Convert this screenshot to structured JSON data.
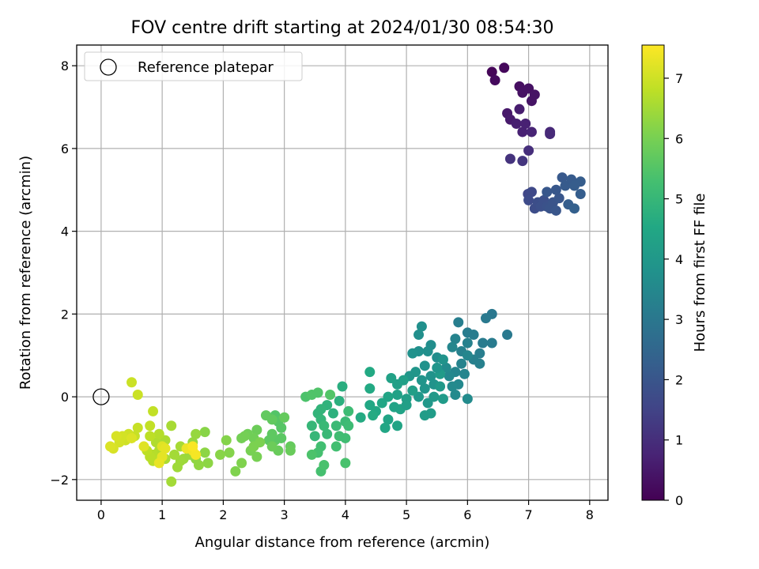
{
  "chart_data": {
    "type": "scatter",
    "title": "FOV centre drift starting at 2024/01/30 08:54:30",
    "xlabel": "Angular distance from reference (arcmin)",
    "ylabel": "Rotation from reference (arcmin)",
    "xlim": [
      -0.4,
      8.3
    ],
    "ylim": [
      -2.5,
      8.5
    ],
    "xticks": [
      0,
      1,
      2,
      3,
      4,
      5,
      6,
      7,
      8
    ],
    "yticks": [
      -2,
      0,
      2,
      4,
      6,
      8
    ],
    "ytick_labels": [
      "−2",
      "0",
      "2",
      "4",
      "6",
      "8"
    ],
    "grid": true,
    "legend": {
      "placement": "top-left",
      "entries": [
        {
          "label": "Reference platepar",
          "marker": "open-circle"
        }
      ]
    },
    "reference_point": {
      "x": 0,
      "y": 0
    },
    "colorbar": {
      "label": "Hours from first FF file",
      "colormap": "viridis",
      "range": [
        0,
        7.55
      ],
      "ticks": [
        0,
        1,
        2,
        3,
        4,
        5,
        6,
        7
      ]
    },
    "series": [
      {
        "values": [
          [
            6.4,
            7.85,
            0.1
          ],
          [
            6.6,
            7.95,
            0.15
          ],
          [
            6.45,
            7.65,
            0.2
          ],
          [
            6.85,
            7.5,
            0.3
          ],
          [
            6.9,
            7.35,
            0.35
          ],
          [
            7.0,
            7.45,
            0.35
          ],
          [
            7.05,
            7.15,
            0.4
          ],
          [
            7.1,
            7.3,
            0.4
          ],
          [
            6.65,
            6.85,
            0.5
          ],
          [
            6.7,
            6.7,
            0.55
          ],
          [
            6.85,
            6.95,
            0.6
          ],
          [
            6.8,
            6.6,
            0.65
          ],
          [
            6.9,
            6.4,
            0.7
          ],
          [
            7.05,
            6.4,
            0.75
          ],
          [
            6.95,
            6.6,
            0.7
          ],
          [
            7.35,
            6.4,
            0.85
          ],
          [
            7.35,
            6.35,
            0.9
          ],
          [
            7.0,
            5.95,
            1.0
          ],
          [
            6.7,
            5.75,
            1.1
          ],
          [
            6.9,
            5.7,
            1.15
          ],
          [
            6.99,
            4.9,
            1.6
          ],
          [
            7.05,
            4.95,
            1.65
          ],
          [
            7.0,
            4.75,
            1.7
          ],
          [
            7.1,
            4.55,
            1.75
          ],
          [
            7.15,
            4.7,
            1.8
          ],
          [
            7.2,
            4.6,
            1.85
          ],
          [
            7.25,
            4.75,
            1.85
          ],
          [
            7.3,
            4.6,
            1.9
          ],
          [
            7.35,
            4.55,
            1.95
          ],
          [
            7.4,
            4.7,
            1.95
          ],
          [
            7.45,
            4.5,
            2.0
          ],
          [
            7.5,
            4.8,
            2.0
          ],
          [
            7.3,
            4.95,
            2.05
          ],
          [
            7.45,
            5.0,
            2.05
          ],
          [
            7.55,
            5.3,
            2.1
          ],
          [
            7.6,
            5.1,
            2.15
          ],
          [
            7.7,
            5.25,
            2.15
          ],
          [
            7.75,
            5.1,
            2.2
          ],
          [
            7.85,
            5.2,
            2.2
          ],
          [
            7.85,
            4.9,
            2.25
          ],
          [
            7.65,
            4.65,
            2.25
          ],
          [
            7.75,
            4.55,
            2.3
          ],
          [
            6.4,
            2.0,
            3.0
          ],
          [
            6.3,
            1.9,
            3.05
          ],
          [
            6.65,
            1.5,
            3.05
          ],
          [
            6.4,
            1.3,
            3.1
          ],
          [
            6.25,
            1.3,
            3.1
          ],
          [
            6.1,
            1.5,
            3.15
          ],
          [
            6.0,
            1.55,
            3.15
          ],
          [
            5.85,
            1.8,
            3.2
          ],
          [
            6.2,
            1.05,
            3.2
          ],
          [
            6.1,
            0.9,
            3.25
          ],
          [
            6.2,
            0.8,
            3.25
          ],
          [
            6.0,
            1.3,
            3.3
          ],
          [
            5.9,
            1.1,
            3.3
          ],
          [
            5.8,
            1.4,
            3.35
          ],
          [
            5.9,
            0.8,
            3.35
          ],
          [
            5.8,
            0.6,
            3.4
          ],
          [
            5.95,
            0.55,
            3.4
          ],
          [
            6.0,
            1.0,
            3.45
          ],
          [
            5.75,
            1.2,
            3.45
          ],
          [
            5.7,
            0.5,
            3.5
          ],
          [
            5.85,
            0.3,
            3.5
          ],
          [
            5.75,
            0.25,
            3.55
          ],
          [
            5.8,
            0.05,
            3.55
          ],
          [
            6.0,
            -0.05,
            3.6
          ],
          [
            5.65,
            0.7,
            3.6
          ],
          [
            5.5,
            0.95,
            3.65
          ],
          [
            5.4,
            1.25,
            3.65
          ],
          [
            5.35,
            1.1,
            3.7
          ],
          [
            5.2,
            1.5,
            3.7
          ],
          [
            5.25,
            1.7,
            3.75
          ],
          [
            5.2,
            1.1,
            3.75
          ],
          [
            5.1,
            1.05,
            3.8
          ],
          [
            5.3,
            0.75,
            3.8
          ],
          [
            5.4,
            0.5,
            3.85
          ],
          [
            5.45,
            0.3,
            3.85
          ],
          [
            5.3,
            0.2,
            3.9
          ],
          [
            5.25,
            0.4,
            3.9
          ],
          [
            5.15,
            0.6,
            3.95
          ],
          [
            5.05,
            0.5,
            3.95
          ],
          [
            5.2,
            0.0,
            4.0
          ],
          [
            5.35,
            -0.15,
            4.0
          ],
          [
            5.45,
            0.0,
            4.05
          ],
          [
            5.55,
            0.25,
            4.05
          ],
          [
            5.55,
            0.55,
            4.1
          ],
          [
            5.6,
            -0.05,
            4.1
          ],
          [
            5.3,
            -0.45,
            4.15
          ],
          [
            5.4,
            -0.4,
            4.15
          ],
          [
            5.1,
            0.15,
            4.2
          ],
          [
            5.0,
            -0.05,
            4.2
          ],
          [
            4.95,
            0.4,
            4.25
          ],
          [
            4.85,
            0.3,
            4.25
          ],
          [
            4.75,
            0.45,
            4.3
          ],
          [
            4.85,
            0.05,
            4.3
          ],
          [
            4.9,
            -0.3,
            4.35
          ],
          [
            4.8,
            -0.25,
            4.35
          ],
          [
            4.7,
            -0.55,
            4.4
          ],
          [
            4.85,
            -0.7,
            4.4
          ],
          [
            4.65,
            -0.75,
            4.45
          ],
          [
            4.6,
            -0.15,
            4.45
          ],
          [
            4.5,
            -0.35,
            4.5
          ],
          [
            4.4,
            -0.2,
            4.5
          ],
          [
            4.4,
            0.2,
            4.55
          ],
          [
            4.4,
            0.6,
            4.55
          ],
          [
            4.25,
            -0.5,
            4.6
          ],
          [
            4.45,
            -0.45,
            4.6
          ],
          [
            4.7,
            0.0,
            4.4
          ],
          [
            5.0,
            -0.2,
            4.25
          ],
          [
            5.5,
            0.7,
            3.9
          ],
          [
            5.6,
            0.9,
            3.85
          ],
          [
            3.95,
            0.25,
            4.7
          ],
          [
            3.9,
            -0.1,
            4.75
          ],
          [
            3.8,
            -0.4,
            4.8
          ],
          [
            3.7,
            -0.2,
            4.85
          ],
          [
            3.6,
            -0.3,
            4.9
          ],
          [
            3.55,
            -0.4,
            4.9
          ],
          [
            3.6,
            -0.55,
            4.95
          ],
          [
            3.45,
            -0.7,
            5.0
          ],
          [
            3.5,
            -0.95,
            5.0
          ],
          [
            3.7,
            -0.9,
            5.05
          ],
          [
            3.65,
            -0.7,
            5.05
          ],
          [
            3.85,
            -0.7,
            5.1
          ],
          [
            4.0,
            -0.6,
            5.1
          ],
          [
            4.05,
            -0.35,
            5.15
          ],
          [
            4.05,
            -0.7,
            5.15
          ],
          [
            3.9,
            -0.95,
            5.2
          ],
          [
            4.0,
            -1.0,
            5.2
          ],
          [
            3.85,
            -1.2,
            5.25
          ],
          [
            3.6,
            -1.2,
            5.25
          ],
          [
            3.55,
            -1.35,
            5.3
          ],
          [
            3.6,
            -1.8,
            5.3
          ],
          [
            3.65,
            -1.65,
            5.35
          ],
          [
            4.0,
            -1.6,
            5.35
          ],
          [
            3.45,
            -1.4,
            5.4
          ],
          [
            3.35,
            0.0,
            5.4
          ],
          [
            3.45,
            0.05,
            5.45
          ],
          [
            3.55,
            0.1,
            5.45
          ],
          [
            3.75,
            0.05,
            5.5
          ],
          [
            2.85,
            -0.45,
            5.5
          ],
          [
            2.9,
            -0.6,
            5.55
          ],
          [
            2.95,
            -0.75,
            5.55
          ],
          [
            2.95,
            -1.0,
            5.6
          ],
          [
            2.85,
            -1.05,
            5.6
          ],
          [
            2.8,
            -0.9,
            5.65
          ],
          [
            2.75,
            -1.05,
            5.65
          ],
          [
            2.7,
            -0.45,
            5.7
          ],
          [
            2.8,
            -0.55,
            5.7
          ],
          [
            3.0,
            -0.5,
            5.75
          ],
          [
            3.1,
            -1.2,
            5.75
          ],
          [
            3.1,
            -1.3,
            5.8
          ],
          [
            2.9,
            -1.3,
            5.8
          ],
          [
            2.8,
            -1.2,
            5.85
          ],
          [
            2.55,
            -0.8,
            5.85
          ],
          [
            2.5,
            -1.0,
            5.9
          ],
          [
            2.4,
            -0.9,
            5.9
          ],
          [
            2.35,
            -0.95,
            5.95
          ],
          [
            2.3,
            -1.0,
            5.95
          ],
          [
            2.45,
            -1.3,
            6.0
          ],
          [
            2.55,
            -1.45,
            6.0
          ],
          [
            2.5,
            -1.2,
            6.05
          ],
          [
            2.6,
            -1.1,
            6.05
          ],
          [
            2.3,
            -1.6,
            6.1
          ],
          [
            2.2,
            -1.8,
            6.1
          ],
          [
            2.1,
            -1.35,
            6.15
          ],
          [
            2.05,
            -1.05,
            6.15
          ],
          [
            1.95,
            -1.4,
            6.2
          ],
          [
            1.7,
            -0.85,
            6.2
          ],
          [
            1.7,
            -1.35,
            6.25
          ],
          [
            1.75,
            -1.6,
            6.25
          ],
          [
            1.6,
            -1.65,
            6.3
          ],
          [
            1.55,
            -1.5,
            6.3
          ],
          [
            1.5,
            -1.1,
            6.35
          ],
          [
            1.55,
            -0.9,
            6.35
          ],
          [
            1.45,
            -1.4,
            6.4
          ],
          [
            1.35,
            -1.5,
            6.4
          ],
          [
            1.3,
            -1.55,
            6.45
          ],
          [
            1.25,
            -1.7,
            6.45
          ],
          [
            1.15,
            -2.05,
            6.5
          ],
          [
            1.2,
            -1.4,
            6.5
          ],
          [
            1.3,
            -1.2,
            6.55
          ],
          [
            1.15,
            -0.7,
            6.55
          ],
          [
            1.05,
            -1.05,
            6.6
          ],
          [
            1.05,
            -1.5,
            6.6
          ],
          [
            0.95,
            -1.3,
            6.65
          ],
          [
            0.9,
            -1.1,
            6.65
          ],
          [
            0.95,
            -0.9,
            6.7
          ],
          [
            0.85,
            -1.4,
            6.7
          ],
          [
            0.85,
            -1.55,
            6.75
          ],
          [
            0.8,
            -1.45,
            6.75
          ],
          [
            0.75,
            -1.3,
            6.8
          ],
          [
            0.8,
            -0.95,
            6.8
          ],
          [
            0.85,
            -0.35,
            6.85
          ],
          [
            0.8,
            -0.7,
            6.85
          ],
          [
            0.6,
            -0.75,
            6.9
          ],
          [
            0.55,
            -0.95,
            6.9
          ],
          [
            0.6,
            0.05,
            6.95
          ],
          [
            0.5,
            0.35,
            6.95
          ],
          [
            0.45,
            -0.9,
            7.0
          ],
          [
            0.4,
            -1.05,
            7.0
          ],
          [
            0.35,
            -0.95,
            7.05
          ],
          [
            0.3,
            -1.1,
            7.05
          ],
          [
            0.25,
            -0.95,
            7.1
          ],
          [
            0.2,
            -1.25,
            7.1
          ],
          [
            0.15,
            -1.2,
            7.15
          ],
          [
            0.5,
            -1.0,
            7.15
          ],
          [
            0.7,
            -1.2,
            7.2
          ],
          [
            1.0,
            -1.2,
            7.2
          ],
          [
            1.05,
            -1.25,
            7.25
          ],
          [
            1.0,
            -1.45,
            7.25
          ],
          [
            0.95,
            -1.6,
            7.3
          ],
          [
            1.4,
            -1.25,
            7.35
          ],
          [
            1.5,
            -1.3,
            7.4
          ],
          [
            1.55,
            -1.4,
            7.45
          ],
          [
            1.5,
            -1.2,
            7.5
          ]
        ]
      }
    ]
  }
}
